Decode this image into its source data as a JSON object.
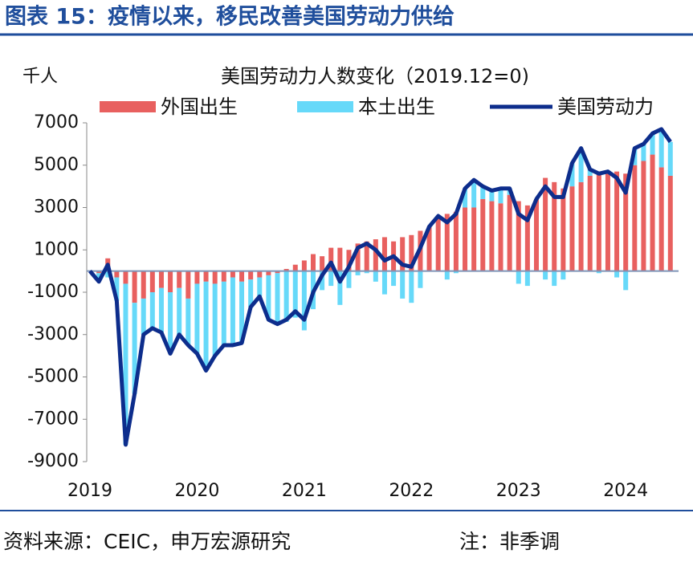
{
  "header": {
    "title": "图表 15：疫情以来，移民改善美国劳动力供给"
  },
  "chart_data": {
    "type": "bar_line",
    "title": "美国劳动力人数变化（2019.12=0)",
    "y_unit": "千人",
    "categories": [
      "2019",
      null,
      null,
      null,
      null,
      null,
      null,
      null,
      null,
      null,
      null,
      null,
      "2020",
      null,
      null,
      null,
      null,
      null,
      null,
      null,
      null,
      null,
      null,
      null,
      "2021",
      null,
      null,
      null,
      null,
      null,
      null,
      null,
      null,
      null,
      null,
      null,
      "2022",
      null,
      null,
      null,
      null,
      null,
      null,
      null,
      null,
      null,
      null,
      null,
      "2023",
      null,
      null,
      null,
      null,
      null,
      null,
      null,
      null,
      null,
      null,
      null,
      "2024",
      null,
      null,
      null,
      null,
      null
    ],
    "series": [
      {
        "name": "外国出生",
        "type": "bar",
        "color": "#e8605f",
        "values": [
          0,
          -100,
          600,
          -300,
          -600,
          -1500,
          -1300,
          -1000,
          -800,
          -1000,
          -800,
          -1300,
          -600,
          -500,
          -600,
          -500,
          -300,
          -500,
          -400,
          -300,
          -200,
          -100,
          100,
          300,
          500,
          800,
          700,
          1100,
          1100,
          1000,
          1300,
          1400,
          1500,
          1600,
          1400,
          1600,
          1700,
          1900,
          2100,
          2500,
          2700,
          2800,
          3000,
          3000,
          3400,
          3300,
          3200,
          3600,
          3300,
          3100,
          3400,
          4400,
          4200,
          3900,
          4000,
          4200,
          4500,
          4700,
          4600,
          4700,
          4600,
          5000,
          5200,
          5500,
          4900,
          4500
        ]
      },
      {
        "name": "本土出生",
        "type": "bar",
        "color": "#66d9f9",
        "values": [
          0,
          -400,
          -300,
          -1100,
          -7600,
          -4300,
          -1700,
          -1700,
          -2100,
          -2900,
          -2200,
          -2200,
          -3300,
          -4200,
          -3400,
          -3000,
          -3200,
          -2900,
          -1300,
          -900,
          -2100,
          -2400,
          -2400,
          -2200,
          -2800,
          -1800,
          -900,
          -700,
          -1600,
          -800,
          -200,
          -100,
          -500,
          -1100,
          -700,
          -1300,
          -1500,
          -800,
          0,
          100,
          -400,
          -100,
          900,
          1300,
          600,
          500,
          700,
          300,
          -600,
          -700,
          0,
          -400,
          -700,
          -400,
          1100,
          1600,
          300,
          -100,
          100,
          -300,
          -900,
          800,
          800,
          1000,
          1800,
          1600
        ]
      },
      {
        "name": "美国劳动力",
        "type": "line",
        "color": "#0d2d8c",
        "values": [
          0,
          -500,
          300,
          -1400,
          -8200,
          -5800,
          -3000,
          -2700,
          -2900,
          -3900,
          -3000,
          -3500,
          -3900,
          -4700,
          -4000,
          -3500,
          -3500,
          -3400,
          -1700,
          -1200,
          -2300,
          -2500,
          -2300,
          -1900,
          -2300,
          -1000,
          -200,
          400,
          -500,
          200,
          1100,
          1300,
          1000,
          500,
          700,
          300,
          200,
          1100,
          2100,
          2600,
          2300,
          2700,
          3900,
          4300,
          4000,
          3800,
          3900,
          3900,
          2700,
          2400,
          3400,
          4000,
          3500,
          3500,
          5100,
          5800,
          4800,
          4600,
          4700,
          4400,
          3700,
          5800,
          6000,
          6500,
          6700,
          6100
        ]
      }
    ],
    "ylim": [
      -9000,
      7000
    ],
    "yticks": [
      7000,
      5000,
      3000,
      1000,
      -1000,
      -3000,
      -5000,
      -7000,
      -9000
    ]
  },
  "footer": {
    "source": "资料来源：CEIC，申万宏源研究",
    "note": "注：非季调"
  }
}
